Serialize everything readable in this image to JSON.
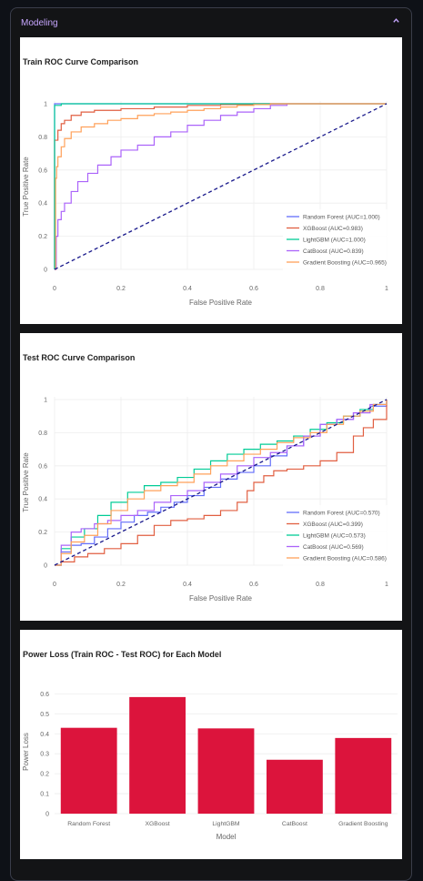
{
  "expander": {
    "title": "Modeling",
    "chevron_icon": "chevron-up-icon"
  },
  "colors": {
    "Random Forest": "#636efa",
    "XGBoost": "#e15f41",
    "LightGBM": "#00cc96",
    "CatBoost": "#ab63fa",
    "Gradient Boosting": "#ffa15a",
    "diagonal": "#1a1a8c",
    "bar": "#dc143c"
  },
  "charts": {
    "train": {
      "title": "Train ROC Curve Comparison",
      "xlabel": "False Positive Rate",
      "ylabel": "True Positive Rate",
      "xticks": [
        "0",
        "0.2",
        "0.4",
        "0.6",
        "0.8",
        "1"
      ],
      "yticks": [
        "0",
        "0.2",
        "0.4",
        "0.6",
        "0.8",
        "1"
      ],
      "legend": [
        "Random Forest (AUC=1.000)",
        "XGBoost (AUC=0.983)",
        "LightGBM (AUC=1.000)",
        "CatBoost (AUC=0.839)",
        "Gradient Boosting (AUC=0.965)"
      ]
    },
    "test": {
      "title": "Test ROC Curve Comparison",
      "xlabel": "False Positive Rate",
      "ylabel": "True Positive Rate",
      "xticks": [
        "0",
        "0.2",
        "0.4",
        "0.6",
        "0.8",
        "1"
      ],
      "yticks": [
        "0",
        "0.2",
        "0.4",
        "0.6",
        "0.8",
        "1"
      ],
      "legend": [
        "Random Forest (AUC=0.570)",
        "XGBoost (AUC=0.399)",
        "LightGBM (AUC=0.573)",
        "CatBoost (AUC=0.569)",
        "Gradient Boosting (AUC=0.586)"
      ]
    },
    "power": {
      "title": "Power Loss (Train ROC - Test ROC) for Each Model",
      "xlabel": "Model",
      "ylabel": "Power Loss",
      "yticks": [
        "0",
        "0.1",
        "0.2",
        "0.3",
        "0.4",
        "0.5",
        "0.6"
      ]
    }
  },
  "chart_data": [
    {
      "type": "line",
      "title": "Train ROC Curve Comparison",
      "xlabel": "False Positive Rate",
      "ylabel": "True Positive Rate",
      "xlim": [
        0,
        1
      ],
      "ylim": [
        0,
        1
      ],
      "series": [
        {
          "name": "Random Forest (AUC=1.000)",
          "x": [
            0,
            0,
            1
          ],
          "y": [
            0,
            1,
            1
          ]
        },
        {
          "name": "XGBoost (AUC=0.983)",
          "x": [
            0,
            0,
            0.01,
            0.02,
            0.03,
            0.05,
            0.08,
            0.12,
            0.2,
            0.3,
            0.4,
            0.5,
            0.6,
            1
          ],
          "y": [
            0,
            0.78,
            0.84,
            0.88,
            0.9,
            0.93,
            0.95,
            0.96,
            0.97,
            0.98,
            0.99,
            0.995,
            1,
            1
          ]
        },
        {
          "name": "LightGBM (AUC=1.000)",
          "x": [
            0,
            0,
            0.02,
            1
          ],
          "y": [
            0,
            0.99,
            1,
            1
          ]
        },
        {
          "name": "CatBoost (AUC=0.839)",
          "x": [
            0,
            0.005,
            0.01,
            0.02,
            0.03,
            0.05,
            0.07,
            0.1,
            0.13,
            0.17,
            0.2,
            0.25,
            0.3,
            0.35,
            0.4,
            0.45,
            0.5,
            0.55,
            0.6,
            0.65,
            0.7
          ],
          "y": [
            0,
            0.2,
            0.3,
            0.35,
            0.4,
            0.47,
            0.53,
            0.58,
            0.63,
            0.68,
            0.72,
            0.75,
            0.8,
            0.83,
            0.87,
            0.9,
            0.93,
            0.95,
            0.97,
            0.99,
            1
          ]
        },
        {
          "name": "Gradient Boosting (AUC=0.965)",
          "x": [
            0,
            0.003,
            0.006,
            0.01,
            0.02,
            0.03,
            0.05,
            0.08,
            0.12,
            0.16,
            0.2,
            0.25,
            0.3,
            0.35,
            0.4,
            0.45,
            0.5,
            0.55,
            0.6,
            0.65,
            0.7,
            1
          ],
          "y": [
            0,
            0.55,
            0.62,
            0.68,
            0.74,
            0.79,
            0.83,
            0.86,
            0.88,
            0.9,
            0.91,
            0.93,
            0.94,
            0.95,
            0.96,
            0.97,
            0.98,
            0.99,
            0.995,
            1,
            1,
            1
          ]
        },
        {
          "name": "",
          "x": [
            0,
            1
          ],
          "y": [
            0,
            1
          ],
          "dashed": true
        }
      ],
      "legend_position": "bottom-right"
    },
    {
      "type": "line",
      "title": "Test ROC Curve Comparison",
      "xlabel": "False Positive Rate",
      "ylabel": "True Positive Rate",
      "xlim": [
        0,
        1
      ],
      "ylim": [
        0,
        1
      ],
      "series": [
        {
          "name": "Random Forest (AUC=0.570)",
          "x": [
            0,
            0.02,
            0.05,
            0.08,
            0.12,
            0.16,
            0.2,
            0.24,
            0.28,
            0.32,
            0.36,
            0.4,
            0.45,
            0.5,
            0.55,
            0.6,
            0.65,
            0.7,
            0.75,
            0.8,
            0.85,
            0.9,
            0.95,
            1
          ],
          "y": [
            0,
            0.08,
            0.12,
            0.13,
            0.17,
            0.22,
            0.26,
            0.3,
            0.32,
            0.35,
            0.38,
            0.42,
            0.47,
            0.52,
            0.56,
            0.6,
            0.66,
            0.72,
            0.78,
            0.85,
            0.88,
            0.92,
            0.96,
            1
          ]
        },
        {
          "name": "XGBoost (AUC=0.399)",
          "x": [
            0,
            0.02,
            0.06,
            0.1,
            0.15,
            0.2,
            0.25,
            0.3,
            0.35,
            0.4,
            0.45,
            0.5,
            0.55,
            0.58,
            0.6,
            0.63,
            0.66,
            0.7,
            0.75,
            0.8,
            0.85,
            0.9,
            0.93,
            0.96,
            1
          ],
          "y": [
            0,
            0.02,
            0.05,
            0.07,
            0.1,
            0.13,
            0.18,
            0.24,
            0.27,
            0.28,
            0.3,
            0.33,
            0.38,
            0.45,
            0.5,
            0.54,
            0.57,
            0.58,
            0.6,
            0.63,
            0.68,
            0.78,
            0.83,
            0.88,
            1
          ]
        },
        {
          "name": "LightGBM (AUC=0.573)",
          "x": [
            0,
            0.02,
            0.05,
            0.09,
            0.13,
            0.17,
            0.22,
            0.27,
            0.32,
            0.37,
            0.42,
            0.47,
            0.52,
            0.57,
            0.62,
            0.67,
            0.72,
            0.77,
            0.82,
            0.87,
            0.92,
            0.96,
            1
          ],
          "y": [
            0,
            0.1,
            0.17,
            0.22,
            0.3,
            0.38,
            0.44,
            0.48,
            0.5,
            0.53,
            0.58,
            0.63,
            0.67,
            0.7,
            0.73,
            0.75,
            0.78,
            0.82,
            0.86,
            0.9,
            0.94,
            0.97,
            1
          ]
        },
        {
          "name": "CatBoost (AUC=0.569)",
          "x": [
            0,
            0.02,
            0.05,
            0.08,
            0.12,
            0.16,
            0.2,
            0.25,
            0.3,
            0.35,
            0.4,
            0.45,
            0.5,
            0.55,
            0.6,
            0.65,
            0.7,
            0.75,
            0.8,
            0.85,
            0.9,
            0.95,
            1
          ],
          "y": [
            0,
            0.12,
            0.2,
            0.22,
            0.25,
            0.27,
            0.3,
            0.33,
            0.38,
            0.42,
            0.45,
            0.5,
            0.55,
            0.6,
            0.65,
            0.68,
            0.72,
            0.78,
            0.85,
            0.88,
            0.92,
            0.97,
            1
          ]
        },
        {
          "name": "Gradient Boosting (AUC=0.586)",
          "x": [
            0,
            0.02,
            0.05,
            0.09,
            0.13,
            0.17,
            0.22,
            0.27,
            0.32,
            0.37,
            0.42,
            0.47,
            0.52,
            0.57,
            0.62,
            0.67,
            0.72,
            0.77,
            0.82,
            0.87,
            0.92,
            0.96,
            1
          ],
          "y": [
            0,
            0.07,
            0.14,
            0.18,
            0.25,
            0.33,
            0.4,
            0.45,
            0.48,
            0.5,
            0.55,
            0.6,
            0.63,
            0.67,
            0.7,
            0.74,
            0.77,
            0.8,
            0.85,
            0.9,
            0.93,
            0.97,
            1
          ]
        },
        {
          "name": "",
          "x": [
            0,
            1
          ],
          "y": [
            0,
            1
          ],
          "dashed": true
        }
      ],
      "legend_position": "bottom-right"
    },
    {
      "type": "bar",
      "title": "Power Loss (Train ROC - Test ROC) for Each Model",
      "xlabel": "Model",
      "ylabel": "Power Loss",
      "categories": [
        "Random Forest",
        "XGBoost",
        "LightGBM",
        "CatBoost",
        "Gradient Boosting"
      ],
      "values": [
        0.43,
        0.584,
        0.427,
        0.27,
        0.379
      ],
      "ylim": [
        0,
        0.62
      ]
    }
  ]
}
